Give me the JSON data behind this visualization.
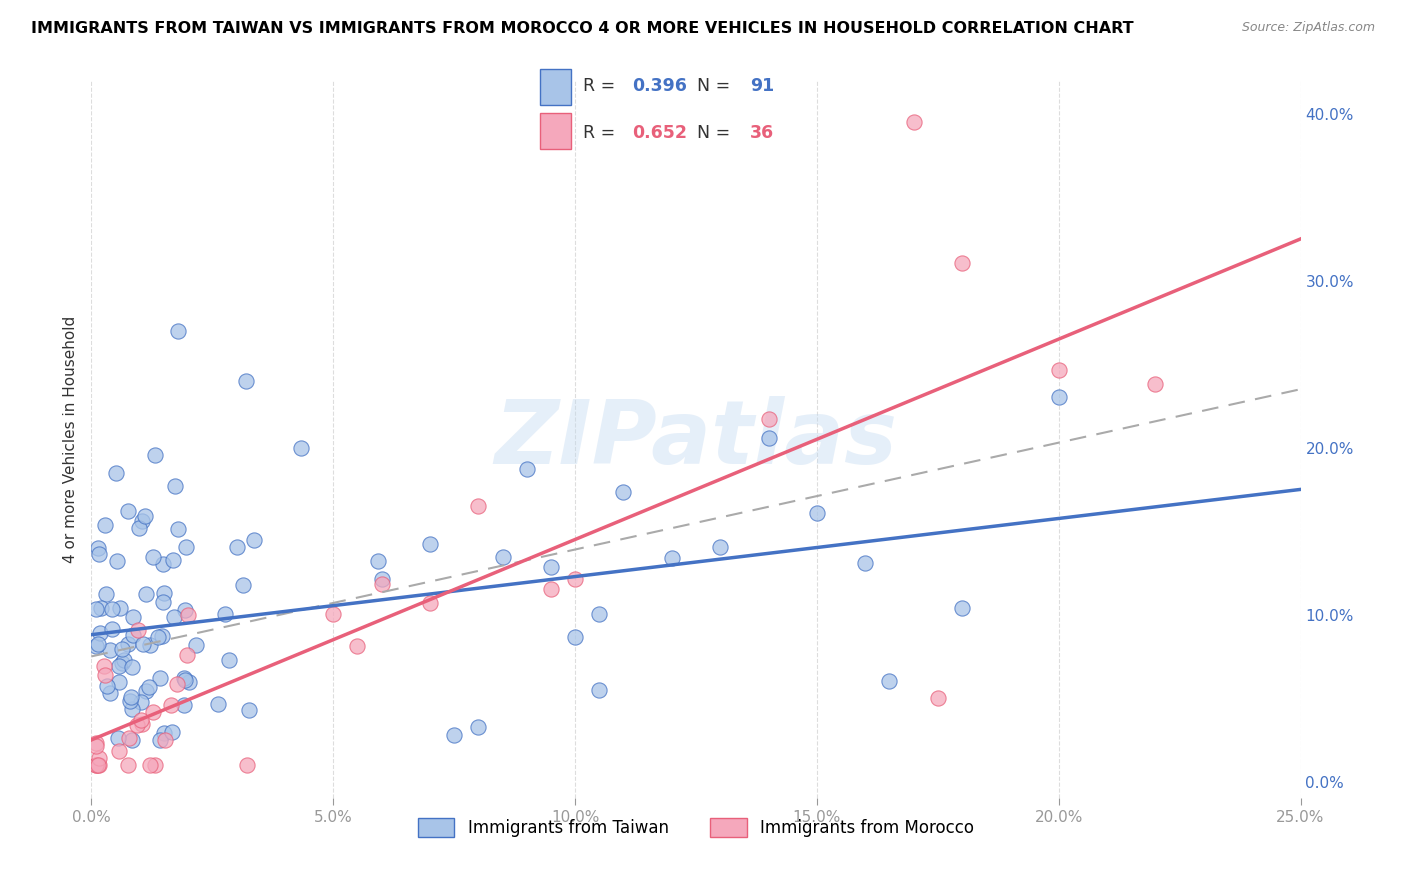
{
  "title": "IMMIGRANTS FROM TAIWAN VS IMMIGRANTS FROM MOROCCO 4 OR MORE VEHICLES IN HOUSEHOLD CORRELATION CHART",
  "source": "Source: ZipAtlas.com",
  "ylabel": "4 or more Vehicles in Household",
  "legend_taiwan": "Immigrants from Taiwan",
  "legend_morocco": "Immigrants from Morocco",
  "R_taiwan": 0.396,
  "N_taiwan": 91,
  "R_morocco": 0.652,
  "N_morocco": 36,
  "color_taiwan": "#a8c4e8",
  "color_morocco": "#f5a8bc",
  "color_line_taiwan": "#4472c4",
  "color_line_morocco": "#e8607a",
  "color_line_gray": "#aaaaaa",
  "xlim": [
    0.0,
    0.25
  ],
  "ylim": [
    -0.01,
    0.42
  ],
  "x_ticks": [
    0.0,
    0.05,
    0.1,
    0.15,
    0.2,
    0.25
  ],
  "x_tick_labels": [
    "0.0%",
    "5.0%",
    "10.0%",
    "15.0%",
    "20.0%",
    "25.0%"
  ],
  "y_ticks": [
    0.0,
    0.1,
    0.2,
    0.3,
    0.4
  ],
  "y_tick_labels": [
    "0.0%",
    "10.0%",
    "20.0%",
    "30.0%",
    "40.0%"
  ],
  "watermark": "ZIPatlas",
  "background_color": "#ffffff",
  "grid_color": "#dddddd",
  "tw_line_x0": 0.0,
  "tw_line_y0": 0.088,
  "tw_line_x1": 0.25,
  "tw_line_y1": 0.175,
  "mo_line_x0": 0.0,
  "mo_line_y0": 0.025,
  "mo_line_x1": 0.25,
  "mo_line_y1": 0.325,
  "gray_line_x0": 0.0,
  "gray_line_y0": 0.075,
  "gray_line_x1": 0.25,
  "gray_line_y1": 0.235
}
